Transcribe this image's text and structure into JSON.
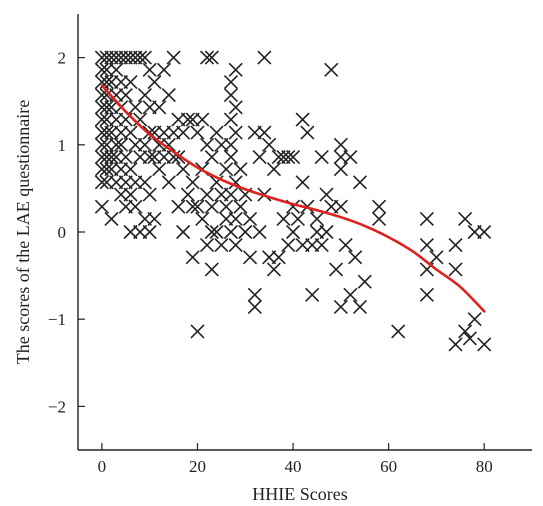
{
  "chart_data": {
    "type": "scatter",
    "title": "",
    "xlabel": "HHIE Scores",
    "ylabel": "The scores of the LAE questionnaire",
    "xlim": [
      -5,
      90
    ],
    "ylim": [
      -2.5,
      2.5
    ],
    "xticks": [
      0,
      20,
      40,
      60,
      80
    ],
    "yticks": [
      -2,
      -1,
      0,
      1,
      2
    ],
    "ytick_labels": [
      "−2",
      "−1",
      "0",
      "1",
      "2"
    ],
    "grid": false,
    "legend": "none",
    "marker": "x",
    "colors": {
      "points": "#222222",
      "trend": "#e0201b",
      "axis": "#222222"
    },
    "series": [
      {
        "type": "scatter",
        "points": [
          [
            0,
            2
          ],
          [
            0,
            1.86
          ],
          [
            0,
            1.72
          ],
          [
            0,
            1.57
          ],
          [
            0,
            1.43
          ],
          [
            0,
            1.29
          ],
          [
            0,
            1.14
          ],
          [
            0,
            1
          ],
          [
            0,
            0.86
          ],
          [
            0,
            0.72
          ],
          [
            0,
            0.57
          ],
          [
            0,
            0.29
          ],
          [
            1,
            2
          ],
          [
            1,
            1.86
          ],
          [
            1,
            1.72
          ],
          [
            1,
            1.57
          ],
          [
            1,
            1.43
          ],
          [
            1,
            1.29
          ],
          [
            1,
            1.14
          ],
          [
            1,
            1
          ],
          [
            1,
            0.86
          ],
          [
            1,
            0.72
          ],
          [
            1,
            0.57
          ],
          [
            2,
            2
          ],
          [
            2,
            1.72
          ],
          [
            2,
            1.43
          ],
          [
            2,
            1.14
          ],
          [
            2,
            0.86
          ],
          [
            2,
            0.72
          ],
          [
            2,
            0.15
          ],
          [
            3,
            2
          ],
          [
            3,
            1.86
          ],
          [
            3,
            1.57
          ],
          [
            3,
            1.29
          ],
          [
            3,
            1
          ],
          [
            3,
            0.86
          ],
          [
            3,
            0.57
          ],
          [
            4,
            2
          ],
          [
            4,
            1.72
          ],
          [
            4,
            1.43
          ],
          [
            4,
            1.14
          ],
          [
            4,
            1
          ],
          [
            4,
            0.72
          ],
          [
            4,
            0.43
          ],
          [
            5,
            2
          ],
          [
            5,
            1.57
          ],
          [
            5,
            1.29
          ],
          [
            5,
            0.86
          ],
          [
            5,
            0.57
          ],
          [
            5,
            0.29
          ],
          [
            6,
            2
          ],
          [
            6,
            1.72
          ],
          [
            6,
            1.14
          ],
          [
            6,
            0.72
          ],
          [
            6,
            0.43
          ],
          [
            6,
            0
          ],
          [
            7,
            2
          ],
          [
            7,
            1.43
          ],
          [
            7,
            1
          ],
          [
            7,
            0.57
          ],
          [
            7,
            0.29
          ],
          [
            8,
            2
          ],
          [
            8,
            1.29
          ],
          [
            8,
            0.86
          ],
          [
            8,
            0
          ],
          [
            9,
            2
          ],
          [
            9,
            1.57
          ],
          [
            9,
            1
          ],
          [
            9,
            0.57
          ],
          [
            9,
            0.15
          ],
          [
            10,
            1.86
          ],
          [
            10,
            1.43
          ],
          [
            10,
            1.14
          ],
          [
            10,
            0.86
          ],
          [
            10,
            0.43
          ],
          [
            10,
            0
          ],
          [
            11,
            1.72
          ],
          [
            11,
            1.14
          ],
          [
            11,
            0.86
          ],
          [
            11,
            0.15
          ],
          [
            12,
            1.43
          ],
          [
            12,
            1
          ],
          [
            12,
            0.72
          ],
          [
            13,
            1.86
          ],
          [
            13,
            1.14
          ],
          [
            13,
            0.86
          ],
          [
            14,
            1.57
          ],
          [
            14,
            1
          ],
          [
            14,
            0.57
          ],
          [
            15,
            2
          ],
          [
            15,
            1.14
          ],
          [
            15,
            0.86
          ],
          [
            16,
            1.29
          ],
          [
            16,
            0.86
          ],
          [
            16,
            0.29
          ],
          [
            17,
            1.14
          ],
          [
            17,
            0.72
          ],
          [
            17,
            0
          ],
          [
            18,
            1.29
          ],
          [
            18,
            0.43
          ],
          [
            19,
            1.29
          ],
          [
            19,
            0.57
          ],
          [
            19,
            0.29
          ],
          [
            19,
            -0.29
          ],
          [
            20,
            1.14
          ],
          [
            20,
            0.29
          ],
          [
            20,
            -1.14
          ],
          [
            21,
            1.29
          ],
          [
            21,
            0.72
          ],
          [
            21,
            0.15
          ],
          [
            22,
            2
          ],
          [
            22,
            1
          ],
          [
            22,
            0.43
          ],
          [
            22,
            -0.15
          ],
          [
            23,
            2
          ],
          [
            23,
            0.86
          ],
          [
            23,
            0.29
          ],
          [
            23,
            0
          ],
          [
            23,
            -0.43
          ],
          [
            24,
            1.14
          ],
          [
            24,
            0.57
          ],
          [
            24,
            0
          ],
          [
            25,
            1
          ],
          [
            25,
            0.43
          ],
          [
            25,
            -0.15
          ],
          [
            26,
            0.72
          ],
          [
            26,
            0.29
          ],
          [
            26,
            0.15
          ],
          [
            27,
            1.72
          ],
          [
            27,
            1.57
          ],
          [
            27,
            1.29
          ],
          [
            27,
            1
          ],
          [
            27,
            0.86
          ],
          [
            27,
            0.43
          ],
          [
            27,
            0
          ],
          [
            28,
            1.86
          ],
          [
            28,
            1.43
          ],
          [
            28,
            1.14
          ],
          [
            28,
            0.57
          ],
          [
            28,
            0.15
          ],
          [
            28,
            -0.15
          ],
          [
            29,
            0.72
          ],
          [
            29,
            0.29
          ],
          [
            30,
            0.43
          ],
          [
            30,
            0
          ],
          [
            31,
            0.15
          ],
          [
            31,
            -0.29
          ],
          [
            32,
            1.14
          ],
          [
            32,
            -0.72
          ],
          [
            32,
            -0.86
          ],
          [
            33,
            0.86
          ],
          [
            33,
            0
          ],
          [
            34,
            2
          ],
          [
            34,
            1.14
          ],
          [
            34,
            0.43
          ],
          [
            35,
            1
          ],
          [
            35,
            -0.29
          ],
          [
            36,
            0.72
          ],
          [
            36,
            -0.43
          ],
          [
            37,
            0.86
          ],
          [
            37,
            -0.29
          ],
          [
            38,
            0.86
          ],
          [
            38,
            0.15
          ],
          [
            39,
            0.86
          ],
          [
            39,
            -0.15
          ],
          [
            40,
            0.86
          ],
          [
            40,
            0.29
          ],
          [
            40,
            0
          ],
          [
            41,
            0.15
          ],
          [
            42,
            1.29
          ],
          [
            42,
            0.57
          ],
          [
            42,
            -0.15
          ],
          [
            43,
            1.14
          ],
          [
            43,
            0.29
          ],
          [
            44,
            -0.15
          ],
          [
            44,
            -0.72
          ],
          [
            45,
            0
          ],
          [
            45,
            0.15
          ],
          [
            46,
            0.86
          ],
          [
            46,
            -0.15
          ],
          [
            47,
            0.43
          ],
          [
            47,
            0
          ],
          [
            48,
            1.86
          ],
          [
            48,
            0.29
          ],
          [
            49,
            -0.43
          ],
          [
            50,
            1
          ],
          [
            50,
            0.86
          ],
          [
            50,
            0.72
          ],
          [
            50,
            0.29
          ],
          [
            50,
            -0.86
          ],
          [
            51,
            -0.15
          ],
          [
            52,
            0.86
          ],
          [
            52,
            -0.72
          ],
          [
            53,
            -0.29
          ],
          [
            54,
            0.57
          ],
          [
            54,
            -0.86
          ],
          [
            55,
            -0.57
          ],
          [
            58,
            0.29
          ],
          [
            58,
            0.15
          ],
          [
            62,
            -1.14
          ],
          [
            68,
            0.15
          ],
          [
            68,
            -0.15
          ],
          [
            68,
            -0.43
          ],
          [
            68,
            -0.72
          ],
          [
            70,
            -0.29
          ],
          [
            74,
            -0.15
          ],
          [
            74,
            -0.43
          ],
          [
            74,
            -1.29
          ],
          [
            76,
            0.15
          ],
          [
            76,
            -1.14
          ],
          [
            77,
            -1.22
          ],
          [
            78,
            0
          ],
          [
            78,
            -1
          ],
          [
            80,
            0
          ],
          [
            80,
            -1.29
          ]
        ]
      },
      {
        "type": "line",
        "points": [
          [
            0,
            1.68
          ],
          [
            5,
            1.38
          ],
          [
            10,
            1.12
          ],
          [
            15,
            0.92
          ],
          [
            20,
            0.74
          ],
          [
            25,
            0.6
          ],
          [
            30,
            0.49
          ],
          [
            35,
            0.4
          ],
          [
            40,
            0.32
          ],
          [
            45,
            0.25
          ],
          [
            50,
            0.17
          ],
          [
            55,
            0.07
          ],
          [
            60,
            -0.06
          ],
          [
            65,
            -0.22
          ],
          [
            70,
            -0.43
          ],
          [
            75,
            -0.63
          ],
          [
            80,
            -0.91
          ]
        ]
      }
    ]
  }
}
